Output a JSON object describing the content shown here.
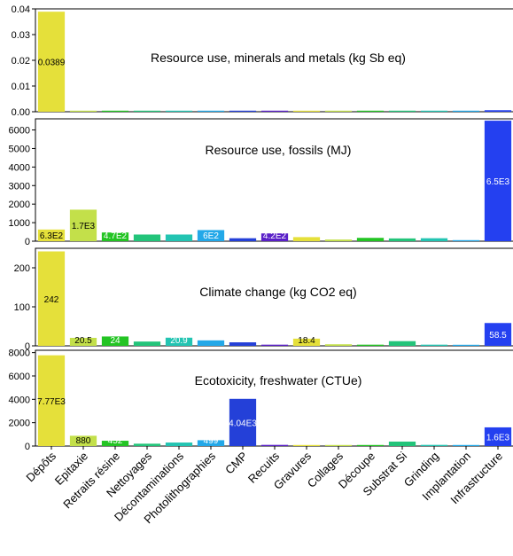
{
  "chart_data": {
    "type": "bar",
    "categories": [
      "Dépôts",
      "Epitaxie",
      "Retraits résine",
      "Nettoyages",
      "Décontaminations",
      "Photolithographies",
      "CMP",
      "Recuits",
      "Gravures",
      "Collages",
      "Découpe",
      "Substrat Si",
      "Grinding",
      "Implantation",
      "Infrastructure"
    ],
    "bar_colors": [
      "#e5e03a",
      "#c3e04a",
      "#23c423",
      "#23c47a",
      "#23c4b2",
      "#23a8e8",
      "#2440d8",
      "#5a20c8",
      "#e5e03a",
      "#c3e04a",
      "#23c423",
      "#23c47a",
      "#23c4b2",
      "#23a8e8",
      "#2440f0"
    ],
    "panels": [
      {
        "title": "Resource use, minerals and metals (kg Sb eq)",
        "ylim": [
          0,
          0.04
        ],
        "yticks": [
          0.0,
          0.01,
          0.02,
          0.03,
          0.04
        ],
        "ytick_labels": [
          "0.00",
          "0.01",
          "0.02",
          "0.03",
          "0.04"
        ],
        "values": [
          0.0389,
          0.0002,
          0.0003,
          0.0003,
          0.0003,
          0.0003,
          0.0003,
          0.0003,
          0.0003,
          0.0003,
          0.0003,
          0.0003,
          0.0002,
          0.0002,
          0.0006
        ],
        "data_labels": [
          "0.0389",
          "",
          "",
          "",
          "",
          "",
          "",
          "",
          "",
          "",
          "",
          "",
          "",
          "",
          ""
        ]
      },
      {
        "title": "Resource use, fossils (MJ)",
        "ylim": [
          0,
          6600
        ],
        "yticks": [
          0,
          1000,
          2000,
          3000,
          4000,
          5000,
          6000
        ],
        "ytick_labels": [
          "0",
          "1000",
          "2000",
          "3000",
          "4000",
          "5000",
          "6000"
        ],
        "values": [
          630,
          1700,
          470,
          360,
          360,
          600,
          160,
          420,
          220,
          90,
          180,
          150,
          160,
          30,
          6500
        ],
        "data_labels": [
          "6.3E2",
          "1.7E3",
          "4.7E2",
          "",
          "",
          "6E2",
          "",
          "4.2E2",
          "",
          "",
          "",
          "",
          "",
          "",
          "6.5E3"
        ]
      },
      {
        "title": "Climate change (kg CO2 eq)",
        "ylim": [
          0,
          250
        ],
        "yticks": [
          0,
          100,
          200
        ],
        "ytick_labels": [
          "0",
          "100",
          "200"
        ],
        "values": [
          242,
          20.5,
          24,
          11,
          20.9,
          14,
          9,
          3,
          18.4,
          4,
          3,
          12,
          3,
          2,
          58.5
        ],
        "data_labels": [
          "242",
          "20.5",
          "24",
          "",
          "20.9",
          "",
          "",
          "",
          "18.4",
          "",
          "",
          "",
          "",
          "",
          "58.5"
        ]
      },
      {
        "title": "Ecotoxicity, freshwater (CTUe)",
        "ylim": [
          0,
          8200
        ],
        "yticks": [
          0,
          2000,
          4000,
          6000,
          8000
        ],
        "ytick_labels": [
          "0",
          "2000",
          "4000",
          "6000",
          "8000"
        ],
        "values": [
          7770,
          880,
          452,
          200,
          300,
          499,
          4040,
          100,
          60,
          80,
          60,
          380,
          100,
          20,
          1600
        ],
        "data_labels": [
          "7.77E3",
          "880",
          "452",
          "",
          "",
          "499",
          "4.04E3",
          "",
          "",
          "",
          "",
          "",
          "",
          "",
          "1.6E3"
        ]
      }
    ]
  }
}
